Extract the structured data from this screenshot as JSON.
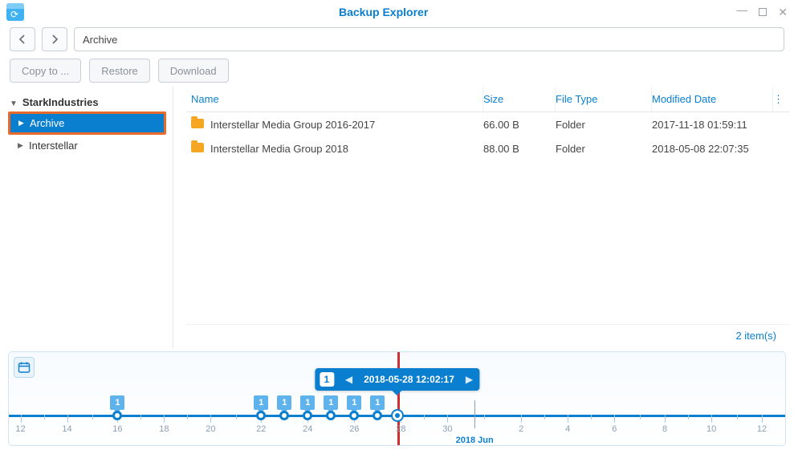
{
  "window": {
    "title": "Backup Explorer"
  },
  "path": {
    "value": "Archive"
  },
  "toolbar": {
    "copy_label": "Copy to ...",
    "restore_label": "Restore",
    "download_label": "Download"
  },
  "tree": {
    "root": "StarkIndustries",
    "items": [
      {
        "label": "Archive",
        "selected": true
      },
      {
        "label": "Interstellar",
        "selected": false
      }
    ]
  },
  "table": {
    "columns": {
      "name": "Name",
      "size": "Size",
      "type": "File Type",
      "date": "Modified Date"
    },
    "rows": [
      {
        "name": "Interstellar Media Group 2016-2017",
        "size": "66.00 B",
        "type": "Folder",
        "date": "2017-11-18 01:59:11"
      },
      {
        "name": "Interstellar Media Group 2018",
        "size": "88.00 B",
        "type": "Folder",
        "date": "2018-05-08 22:07:35"
      }
    ]
  },
  "status": {
    "text": "2 item(s)"
  },
  "timeline": {
    "bubble_count": "1",
    "bubble_ts": "2018-05-28 12:02:17",
    "marker_pct": 50,
    "month_label": "2018 Jun",
    "month_pct": 60,
    "axis_color": "#0a7fd0",
    "ticks": [
      {
        "label": "12",
        "pct": 1.5
      },
      {
        "label": "14",
        "pct": 7.5
      },
      {
        "label": "16",
        "pct": 14
      },
      {
        "label": "18",
        "pct": 20
      },
      {
        "label": "20",
        "pct": 26
      },
      {
        "label": "22",
        "pct": 32.5
      },
      {
        "label": "24",
        "pct": 38.5
      },
      {
        "label": "26",
        "pct": 44.5
      },
      {
        "label": "28",
        "pct": 50.5
      },
      {
        "label": "30",
        "pct": 56.5
      },
      {
        "label": "2",
        "pct": 66
      },
      {
        "label": "4",
        "pct": 72
      },
      {
        "label": "6",
        "pct": 78
      },
      {
        "label": "8",
        "pct": 84.5
      },
      {
        "label": "10",
        "pct": 90.5
      },
      {
        "label": "12",
        "pct": 97
      }
    ],
    "points": [
      {
        "pct": 14,
        "count": "1",
        "current": false
      },
      {
        "pct": 32.5,
        "count": "1",
        "current": false
      },
      {
        "pct": 35.5,
        "count": "1",
        "current": false
      },
      {
        "pct": 38.5,
        "count": "1",
        "current": false
      },
      {
        "pct": 41.5,
        "count": "1",
        "current": false
      },
      {
        "pct": 44.5,
        "count": "1",
        "current": false
      },
      {
        "pct": 47.5,
        "count": "1",
        "current": false
      },
      {
        "pct": 50,
        "count": "1",
        "current": true
      }
    ]
  }
}
